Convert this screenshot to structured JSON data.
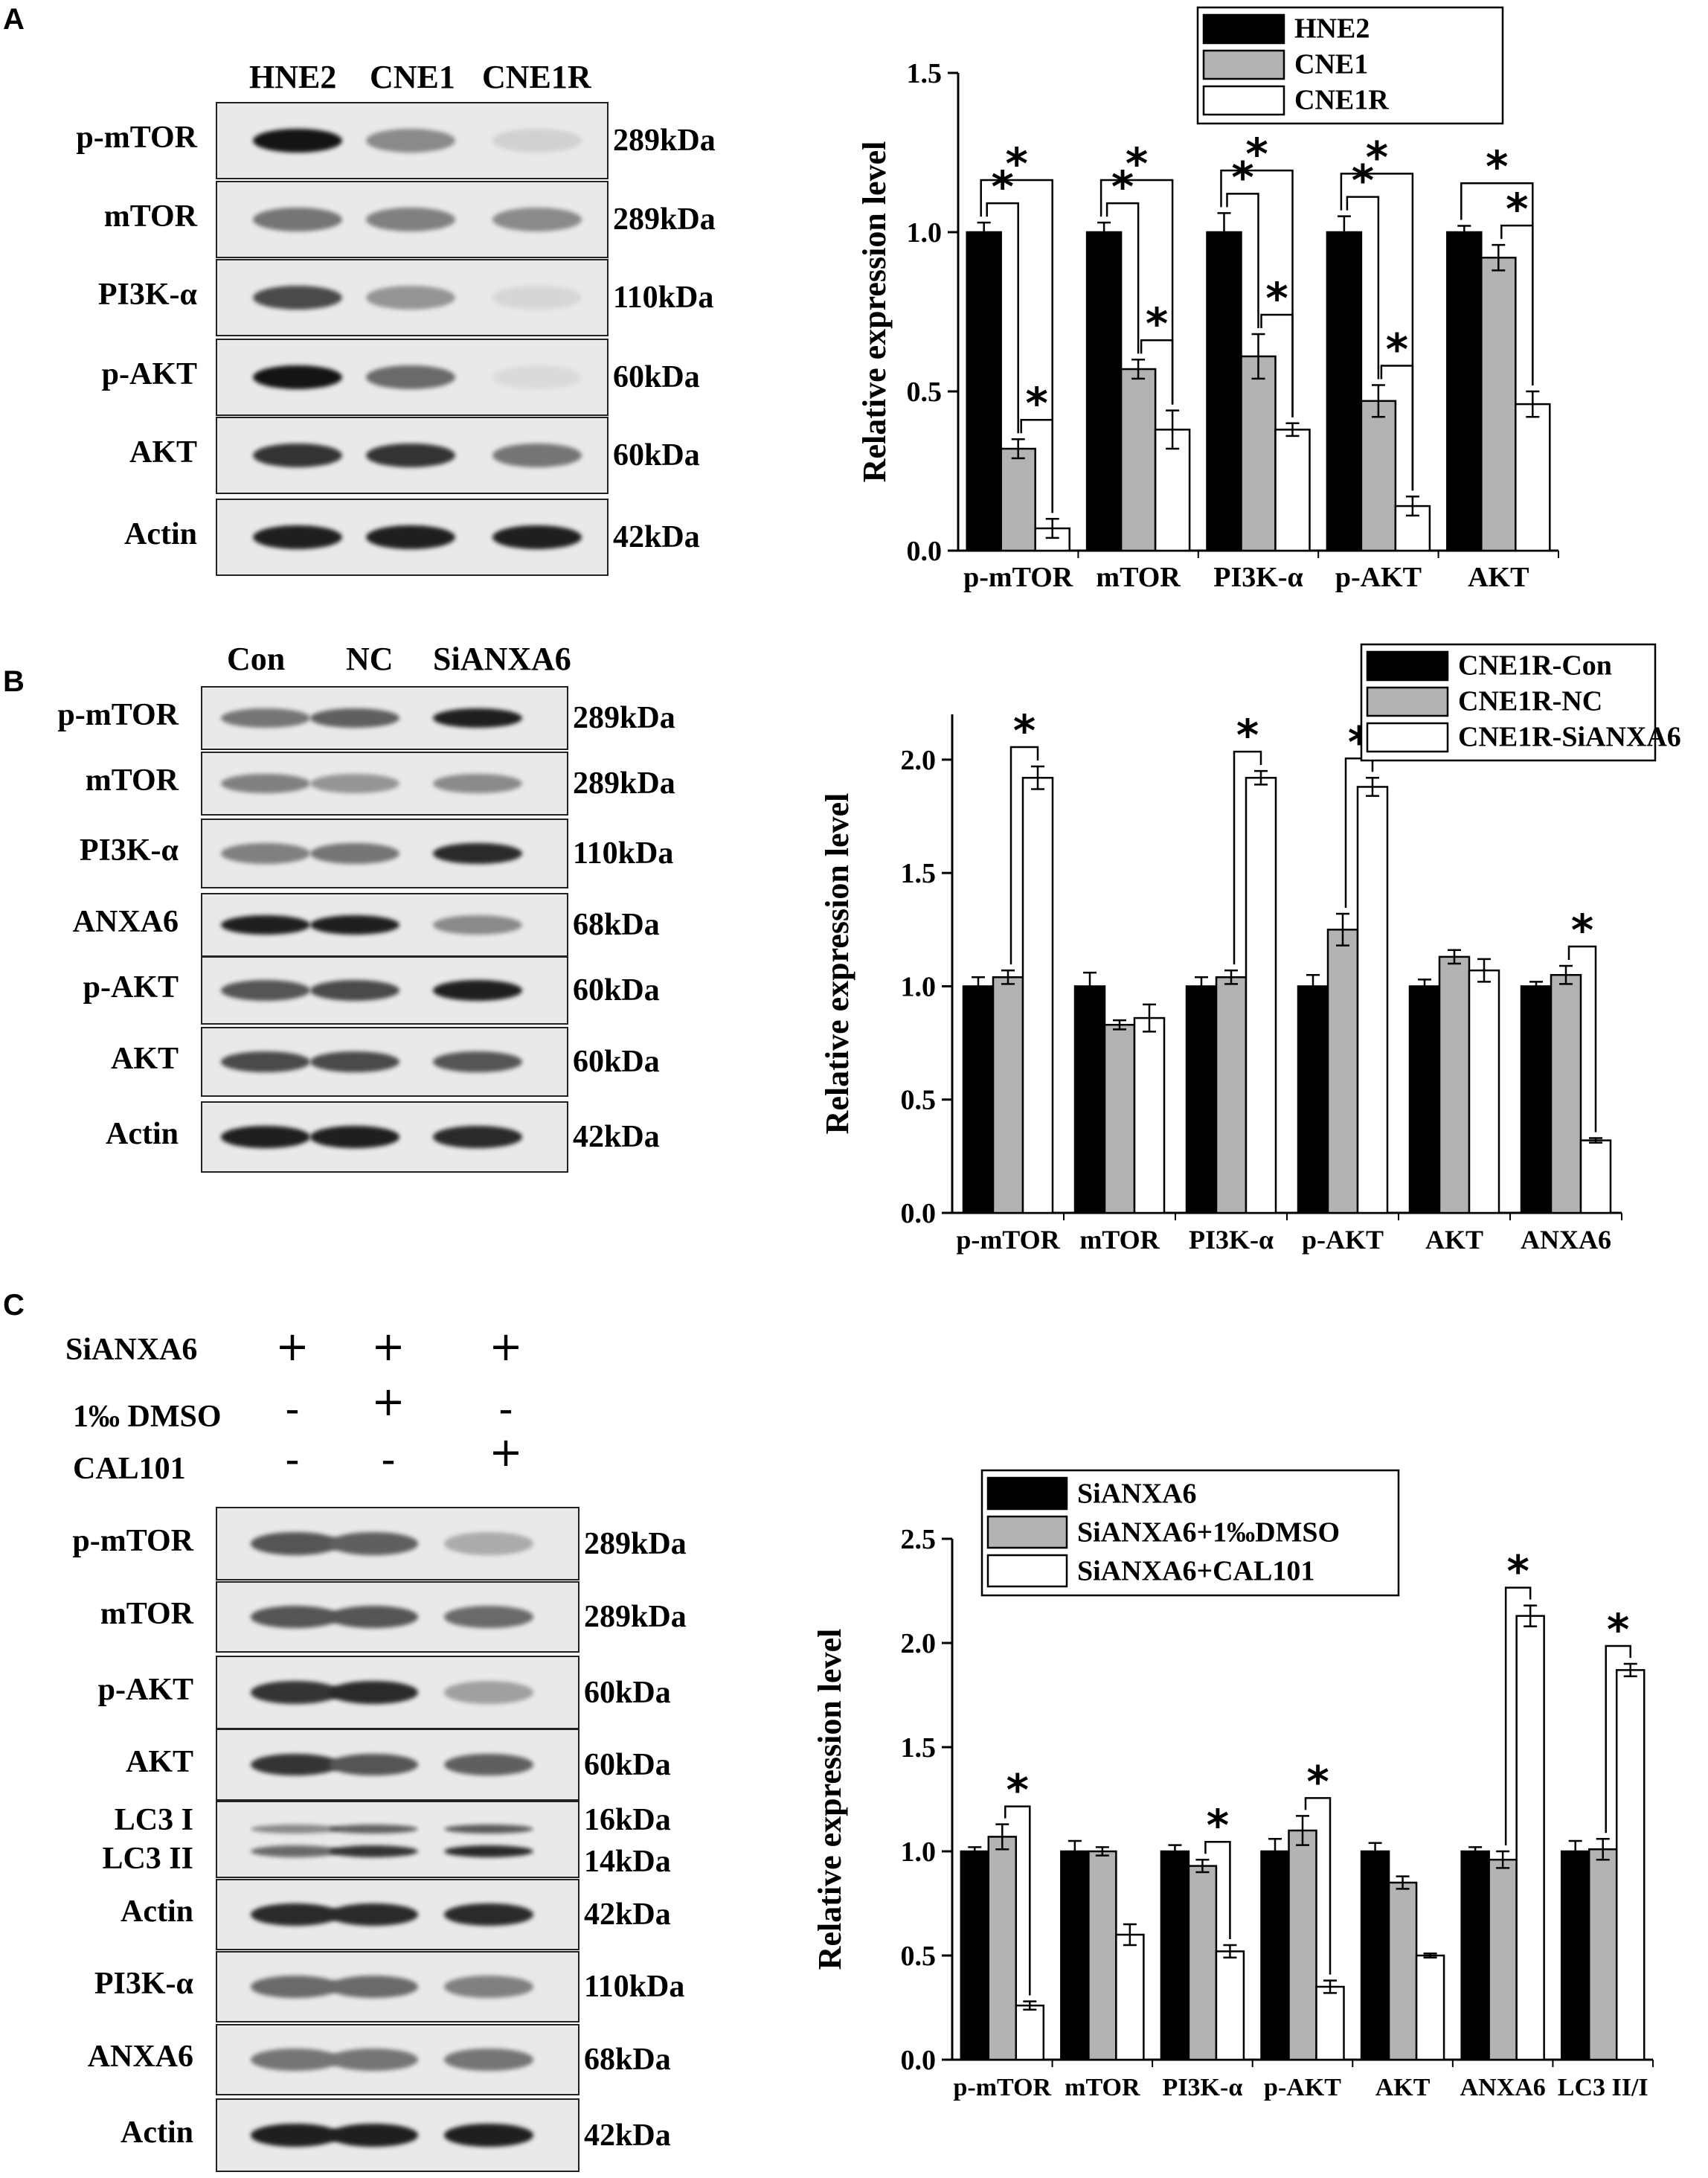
{
  "panels": {
    "A": {
      "label": "A",
      "blot": {
        "lanes": [
          "HNE2",
          "CNE1",
          "CNE1R"
        ],
        "rows": [
          {
            "name": "p-mTOR",
            "kda": "289kDa",
            "intensity": [
              1.0,
              0.45,
              0.12
            ]
          },
          {
            "name": "mTOR",
            "kda": "289kDa",
            "intensity": [
              0.55,
              0.5,
              0.45
            ]
          },
          {
            "name": "PI3K-α",
            "kda": "110kDa",
            "intensity": [
              0.75,
              0.4,
              0.1
            ]
          },
          {
            "name": "p-AKT",
            "kda": "60kDa",
            "intensity": [
              1.0,
              0.6,
              0.08
            ]
          },
          {
            "name": "AKT",
            "kda": "60kDa",
            "intensity": [
              0.85,
              0.85,
              0.55
            ]
          },
          {
            "name": "Actin",
            "kda": "42kDa",
            "intensity": [
              0.95,
              0.95,
              0.95
            ]
          }
        ]
      }
    },
    "B": {
      "label": "B",
      "blot": {
        "lanes": [
          "Con",
          "NC",
          "SiANXA6"
        ],
        "rows": [
          {
            "name": "p-mTOR",
            "kda": "289kDa",
            "intensity": [
              0.55,
              0.65,
              0.95
            ]
          },
          {
            "name": "mTOR",
            "kda": "289kDa",
            "intensity": [
              0.5,
              0.4,
              0.45
            ]
          },
          {
            "name": "PI3K-α",
            "kda": "110kDa",
            "intensity": [
              0.5,
              0.55,
              0.9
            ]
          },
          {
            "name": "ANXA6",
            "kda": "68kDa",
            "intensity": [
              0.95,
              0.95,
              0.45
            ]
          },
          {
            "name": "p-AKT",
            "kda": "60kDa",
            "intensity": [
              0.7,
              0.75,
              0.95
            ]
          },
          {
            "name": "AKT",
            "kda": "60kDa",
            "intensity": [
              0.75,
              0.75,
              0.7
            ]
          },
          {
            "name": "Actin",
            "kda": "42kDa",
            "intensity": [
              0.95,
              0.95,
              0.9
            ]
          }
        ]
      }
    },
    "C": {
      "label": "C",
      "conditions": [
        {
          "name": "SiANXA6",
          "values": [
            "+",
            "+",
            "+"
          ]
        },
        {
          "name": "1‰ DMSO",
          "values": [
            "-",
            "+",
            "-"
          ]
        },
        {
          "name": "CAL101",
          "values": [
            "-",
            "-",
            "+"
          ]
        }
      ],
      "blot": {
        "rows": [
          {
            "name": "p-mTOR",
            "kda": "289kDa",
            "intensity": [
              0.7,
              0.65,
              0.3
            ]
          },
          {
            "name": "mTOR",
            "kda": "289kDa",
            "intensity": [
              0.7,
              0.7,
              0.6
            ]
          },
          {
            "name": "p-AKT",
            "kda": "60kDa",
            "intensity": [
              0.85,
              0.9,
              0.35
            ]
          },
          {
            "name": "AKT",
            "kda": "60kDa",
            "intensity": [
              0.85,
              0.7,
              0.65
            ]
          },
          {
            "name": "LC3 I",
            "name2": "LC3 II",
            "kda": "16kDa",
            "kda2": "14kDa",
            "intensity": [
              0.6,
              0.85,
              0.9
            ]
          },
          {
            "name": "Actin",
            "kda": "42kDa",
            "intensity": [
              0.9,
              0.9,
              0.9
            ]
          },
          {
            "name": "PI3K-α",
            "kda": "110kDa",
            "intensity": [
              0.6,
              0.6,
              0.5
            ]
          },
          {
            "name": "ANXA6",
            "kda": "68kDa",
            "intensity": [
              0.55,
              0.55,
              0.55
            ]
          },
          {
            "name": "Actin",
            "kda": "42kDa",
            "intensity": [
              0.95,
              0.95,
              0.95
            ]
          }
        ]
      }
    }
  },
  "chart_data": [
    {
      "type": "bar",
      "panel": "A",
      "ylabel": "Relative expression level",
      "ylim": [
        0,
        1.5
      ],
      "yticks": [
        "0.0",
        "0.5",
        "1.0",
        "1.5"
      ],
      "categories": [
        "p-mTOR",
        "mTOR",
        "PI3K-α",
        "p-AKT",
        "AKT"
      ],
      "series": [
        {
          "name": "HNE2",
          "color": "#000000",
          "values": [
            1.0,
            1.0,
            1.0,
            1.0,
            1.0
          ],
          "errors": [
            0.03,
            0.03,
            0.06,
            0.05,
            0.02
          ]
        },
        {
          "name": "CNE1",
          "color": "#b3b3b3",
          "values": [
            0.32,
            0.57,
            0.61,
            0.47,
            0.92
          ],
          "errors": [
            0.03,
            0.03,
            0.07,
            0.05,
            0.04
          ]
        },
        {
          "name": "CNE1R",
          "color": "#ffffff",
          "values": [
            0.07,
            0.38,
            0.38,
            0.14,
            0.46
          ],
          "errors": [
            0.03,
            0.06,
            0.02,
            0.03,
            0.04
          ]
        }
      ],
      "significance": [
        {
          "category": 0,
          "from": 0,
          "to": 1,
          "label": "*"
        },
        {
          "category": 0,
          "from": 0,
          "to": 2,
          "label": "*"
        },
        {
          "category": 0,
          "from": 1,
          "to": 2,
          "label": "*"
        },
        {
          "category": 1,
          "from": 0,
          "to": 1,
          "label": "*"
        },
        {
          "category": 1,
          "from": 0,
          "to": 2,
          "label": "*"
        },
        {
          "category": 1,
          "from": 1,
          "to": 2,
          "label": "*"
        },
        {
          "category": 2,
          "from": 0,
          "to": 1,
          "label": "*"
        },
        {
          "category": 2,
          "from": 0,
          "to": 2,
          "label": "*"
        },
        {
          "category": 2,
          "from": 1,
          "to": 2,
          "label": "*"
        },
        {
          "category": 3,
          "from": 0,
          "to": 1,
          "label": "*"
        },
        {
          "category": 3,
          "from": 0,
          "to": 2,
          "label": "*"
        },
        {
          "category": 3,
          "from": 1,
          "to": 2,
          "label": "*"
        },
        {
          "category": 4,
          "from": 0,
          "to": 2,
          "label": "*"
        },
        {
          "category": 4,
          "from": 1,
          "to": 2,
          "label": "*"
        }
      ]
    },
    {
      "type": "bar",
      "panel": "B",
      "ylabel": "Relative expression level",
      "ylim": [
        0,
        2.2
      ],
      "yticks": [
        "0.0",
        "0.5",
        "1.0",
        "1.5",
        "2.0"
      ],
      "categories": [
        "p-mTOR",
        "mTOR",
        "PI3K-α",
        "p-AKT",
        "AKT",
        "ANXA6"
      ],
      "series": [
        {
          "name": "CNE1R-Con",
          "color": "#000000",
          "values": [
            1.0,
            1.0,
            1.0,
            1.0,
            1.0,
            1.0
          ],
          "errors": [
            0.04,
            0.06,
            0.04,
            0.05,
            0.03,
            0.02
          ]
        },
        {
          "name": "CNE1R-NC",
          "color": "#b3b3b3",
          "values": [
            1.04,
            0.83,
            1.04,
            1.25,
            1.13,
            1.05
          ],
          "errors": [
            0.03,
            0.02,
            0.03,
            0.07,
            0.03,
            0.04
          ]
        },
        {
          "name": "CNE1R-SiANXA6",
          "color": "#ffffff",
          "values": [
            1.92,
            0.86,
            1.92,
            1.88,
            1.07,
            0.32
          ],
          "errors": [
            0.05,
            0.06,
            0.03,
            0.04,
            0.05,
            0.01
          ]
        }
      ],
      "significance": [
        {
          "category": 0,
          "from": 1,
          "to": 2,
          "label": "*"
        },
        {
          "category": 2,
          "from": 1,
          "to": 2,
          "label": "*"
        },
        {
          "category": 3,
          "from": 1,
          "to": 2,
          "label": "*"
        },
        {
          "category": 5,
          "from": 1,
          "to": 2,
          "label": "*"
        }
      ]
    },
    {
      "type": "bar",
      "panel": "C",
      "ylabel": "Relative expression level",
      "ylim": [
        0,
        2.5
      ],
      "yticks": [
        "0.0",
        "0.5",
        "1.0",
        "1.5",
        "2.0",
        "2.5"
      ],
      "categories": [
        "p-mTOR",
        "mTOR",
        "PI3K-α",
        "p-AKT",
        "AKT",
        "ANXA6",
        "LC3 II/I"
      ],
      "series": [
        {
          "name": "SiANXA6",
          "color": "#000000",
          "values": [
            1.0,
            1.0,
            1.0,
            1.0,
            1.0,
            1.0,
            1.0
          ],
          "errors": [
            0.02,
            0.05,
            0.03,
            0.06,
            0.04,
            0.02,
            0.05
          ]
        },
        {
          "name": "SiANXA6+1‰DMSO",
          "color": "#b3b3b3",
          "values": [
            1.07,
            1.0,
            0.93,
            1.1,
            0.85,
            0.96,
            1.01
          ],
          "errors": [
            0.06,
            0.02,
            0.03,
            0.07,
            0.03,
            0.04,
            0.05
          ]
        },
        {
          "name": "SiANXA6+CAL101",
          "color": "#ffffff",
          "values": [
            0.26,
            0.6,
            0.52,
            0.35,
            0.5,
            2.13,
            1.87
          ],
          "errors": [
            0.02,
            0.05,
            0.03,
            0.03,
            0.01,
            0.05,
            0.03
          ]
        }
      ],
      "significance": [
        {
          "category": 0,
          "from": 1,
          "to": 2,
          "label": "*"
        },
        {
          "category": 2,
          "from": 1,
          "to": 2,
          "label": "*"
        },
        {
          "category": 3,
          "from": 1,
          "to": 2,
          "label": "*"
        },
        {
          "category": 5,
          "from": 1,
          "to": 2,
          "label": "*"
        },
        {
          "category": 6,
          "from": 1,
          "to": 2,
          "label": "*"
        }
      ]
    }
  ]
}
